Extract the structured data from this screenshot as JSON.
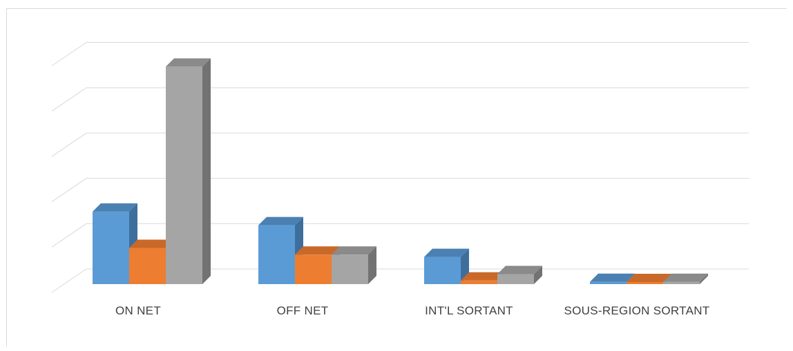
{
  "chart_data": {
    "type": "bar",
    "style": "3d-clustered-column",
    "categories": [
      "ON NET",
      "OFF NET",
      "INT'L SORTANT",
      "SOUS-REGION SORTANT"
    ],
    "series": [
      {
        "values": [
          1.6,
          1.3,
          0.6,
          0.05
        ]
      },
      {
        "values": [
          0.8,
          0.65,
          0.08,
          0.02
        ]
      },
      {
        "values": [
          4.8,
          0.65,
          0.22,
          0.05
        ]
      }
    ],
    "ylim": [
      0,
      5
    ],
    "grid": true,
    "legend": "none",
    "colors": {
      "series": [
        "#5b9bd5",
        "#ed7d31",
        "#a5a5a5"
      ],
      "series_side": [
        "#3e6f9c",
        "#b45e23",
        "#727272"
      ],
      "series_top": [
        "#4a80b2",
        "#c8692a",
        "#8a8a8a"
      ],
      "grid": "#d9d9d9",
      "label": "#404040"
    }
  }
}
